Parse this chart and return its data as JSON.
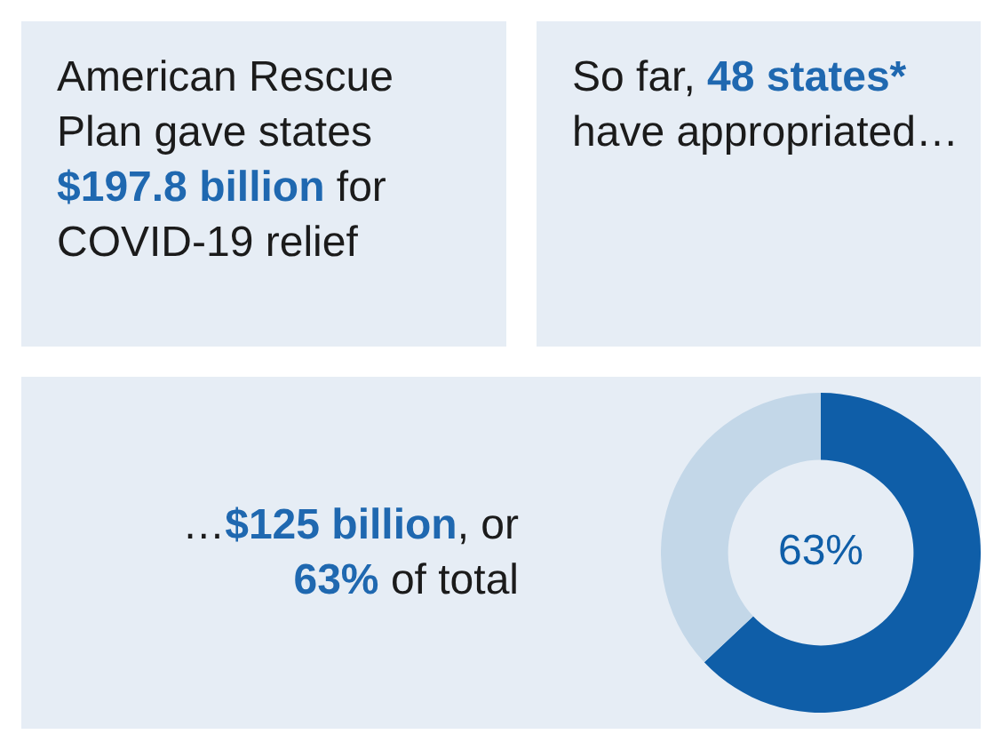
{
  "chart_data": {
    "type": "donut",
    "categories": [
      null,
      null
    ],
    "values": [
      63,
      37
    ],
    "colors": [
      "#0f5ea8",
      "#c3d7e8"
    ],
    "value_labels": [
      "63%",
      null
    ],
    "annotations": [
      "American Rescue Plan gave states ",
      "$197.8 billion",
      " for COVID-19 relief",
      "So far, ",
      "48 states*",
      " have appropriated…",
      "…",
      "$125 billion",
      ", or ",
      "63%",
      " of total"
    ]
  }
}
